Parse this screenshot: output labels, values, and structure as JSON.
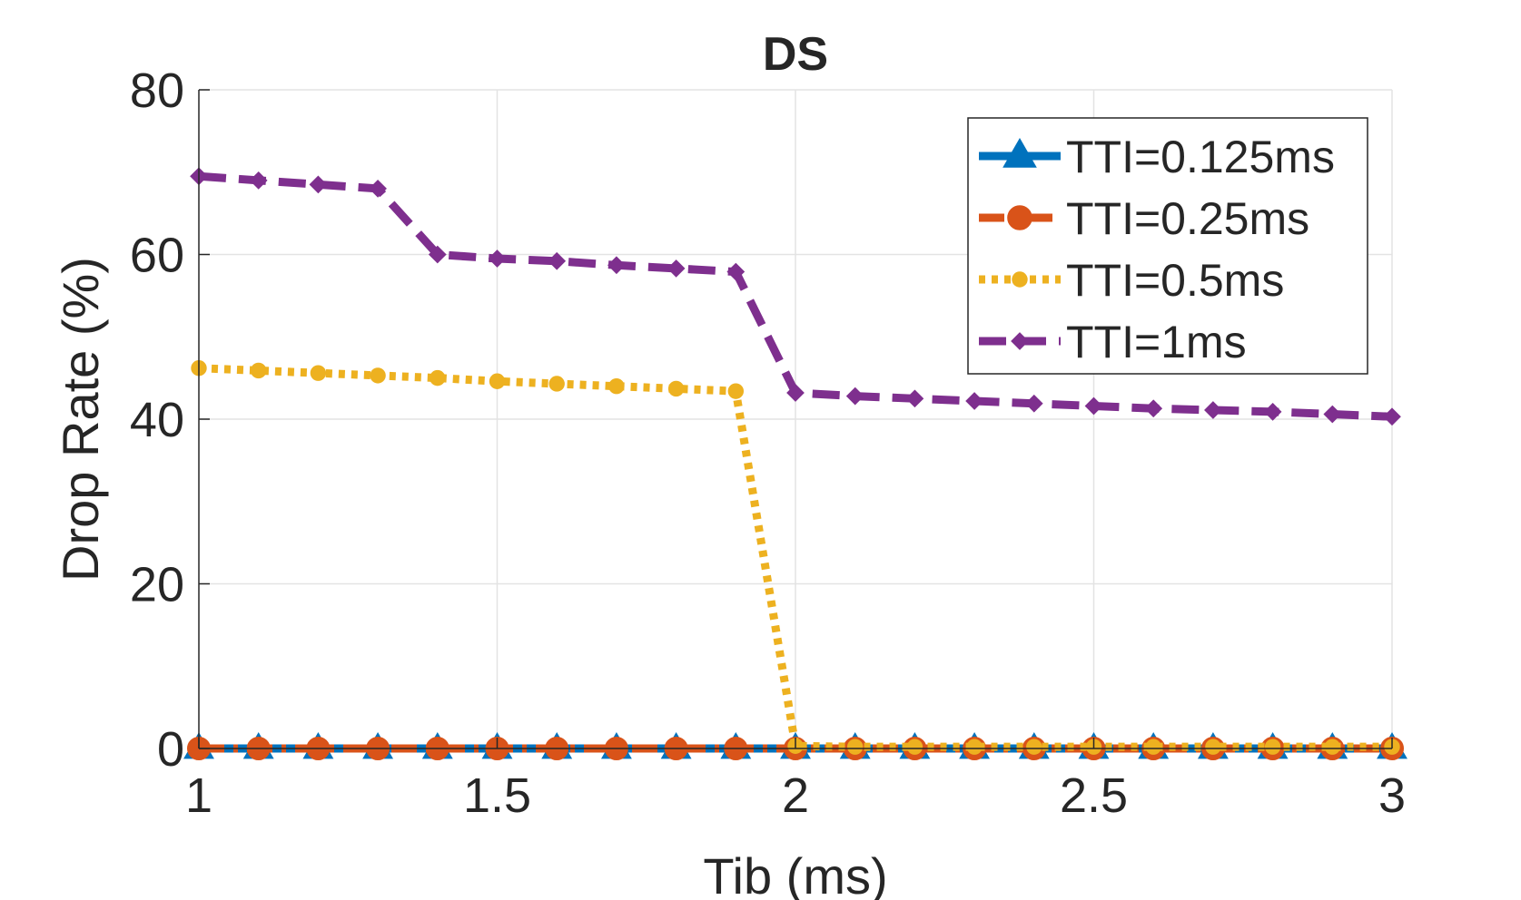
{
  "chart_data": {
    "type": "line",
    "title": "DS",
    "xlabel": "Tib (ms)",
    "ylabel": "Drop Rate (%)",
    "xlim": [
      1,
      3
    ],
    "ylim": [
      0,
      80
    ],
    "xticks": [
      1,
      1.5,
      2,
      2.5,
      3
    ],
    "xtick_labels": [
      "1",
      "1.5",
      "2",
      "2.5",
      "3"
    ],
    "yticks": [
      0,
      20,
      40,
      60,
      80
    ],
    "ytick_labels": [
      "0",
      "20",
      "40",
      "60",
      "80"
    ],
    "grid": true,
    "legend_position": "top-right",
    "x": [
      1.0,
      1.1,
      1.2,
      1.3,
      1.4,
      1.5,
      1.6,
      1.7,
      1.8,
      1.9,
      2.0,
      2.1,
      2.2,
      2.3,
      2.4,
      2.5,
      2.6,
      2.7,
      2.8,
      2.9,
      3.0
    ],
    "series": [
      {
        "name": "TTI=0.125ms",
        "color": "#0072BD",
        "marker": "triangle",
        "line": "solid",
        "values": [
          0,
          0,
          0,
          0,
          0,
          0,
          0,
          0,
          0,
          0,
          0,
          0,
          0,
          0,
          0,
          0,
          0,
          0,
          0,
          0,
          0
        ]
      },
      {
        "name": "TTI=0.25ms",
        "color": "#D95319",
        "marker": "circle",
        "line": "dashdot",
        "values": [
          0,
          0,
          0,
          0,
          0,
          0,
          0,
          0,
          0,
          0,
          0,
          0,
          0,
          0,
          0,
          0,
          0,
          0,
          0,
          0,
          0
        ]
      },
      {
        "name": "TTI=0.5ms",
        "color": "#EDB120",
        "marker": "star",
        "line": "dotted",
        "values": [
          46.2,
          45.9,
          45.6,
          45.3,
          45.0,
          44.6,
          44.3,
          44.0,
          43.7,
          43.4,
          0.3,
          0.2,
          0.2,
          0.2,
          0.2,
          0.2,
          0.2,
          0.2,
          0.2,
          0.2,
          0.2
        ]
      },
      {
        "name": "TTI=1ms",
        "color": "#7E2F8E",
        "marker": "diamond",
        "line": "dashed",
        "values": [
          69.5,
          69.0,
          68.5,
          68.0,
          60.0,
          59.5,
          59.2,
          58.7,
          58.3,
          57.9,
          43.2,
          42.8,
          42.5,
          42.2,
          41.9,
          41.6,
          41.3,
          41.1,
          40.9,
          40.6,
          40.3
        ]
      }
    ]
  }
}
